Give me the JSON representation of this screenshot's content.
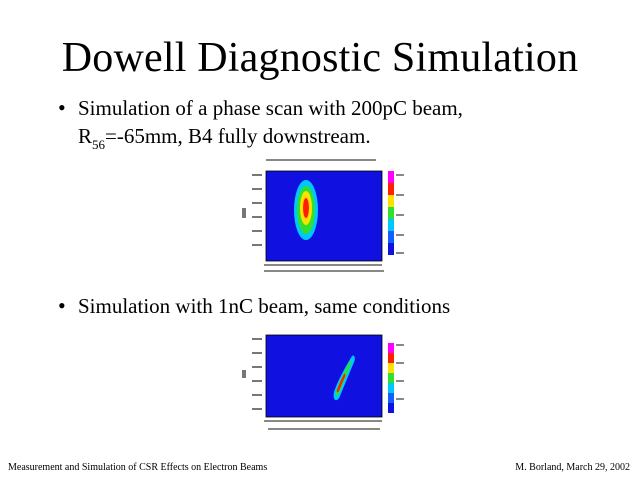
{
  "slide": {
    "title": "Dowell Diagnostic Simulation",
    "bullets": [
      {
        "line1": "Simulation of a phase scan with 200pC beam,",
        "line2_pre": "R",
        "line2_sub": "56",
        "line2_post": "=-65mm, B4 fully downstream."
      },
      {
        "line1": "Simulation with 1nC beam, same conditions"
      }
    ],
    "bullet_glyph": "•"
  },
  "footer": {
    "left": "Measurement and Simulation of CSR Effects on Electron Beams",
    "right": "M. Borland, March 29, 2002"
  },
  "colors": {
    "plot_background": "#1010e0",
    "hot": "#ff2000",
    "warm": "#ffe000",
    "mid": "#30e030",
    "cool": "#00c8ff"
  },
  "figures": [
    {
      "name": "phase-scan-200pC-heatmap",
      "blob_shape": "vertical-ellipse"
    },
    {
      "name": "phase-scan-1nC-heatmap",
      "blob_shape": "curved-crescent"
    }
  ]
}
